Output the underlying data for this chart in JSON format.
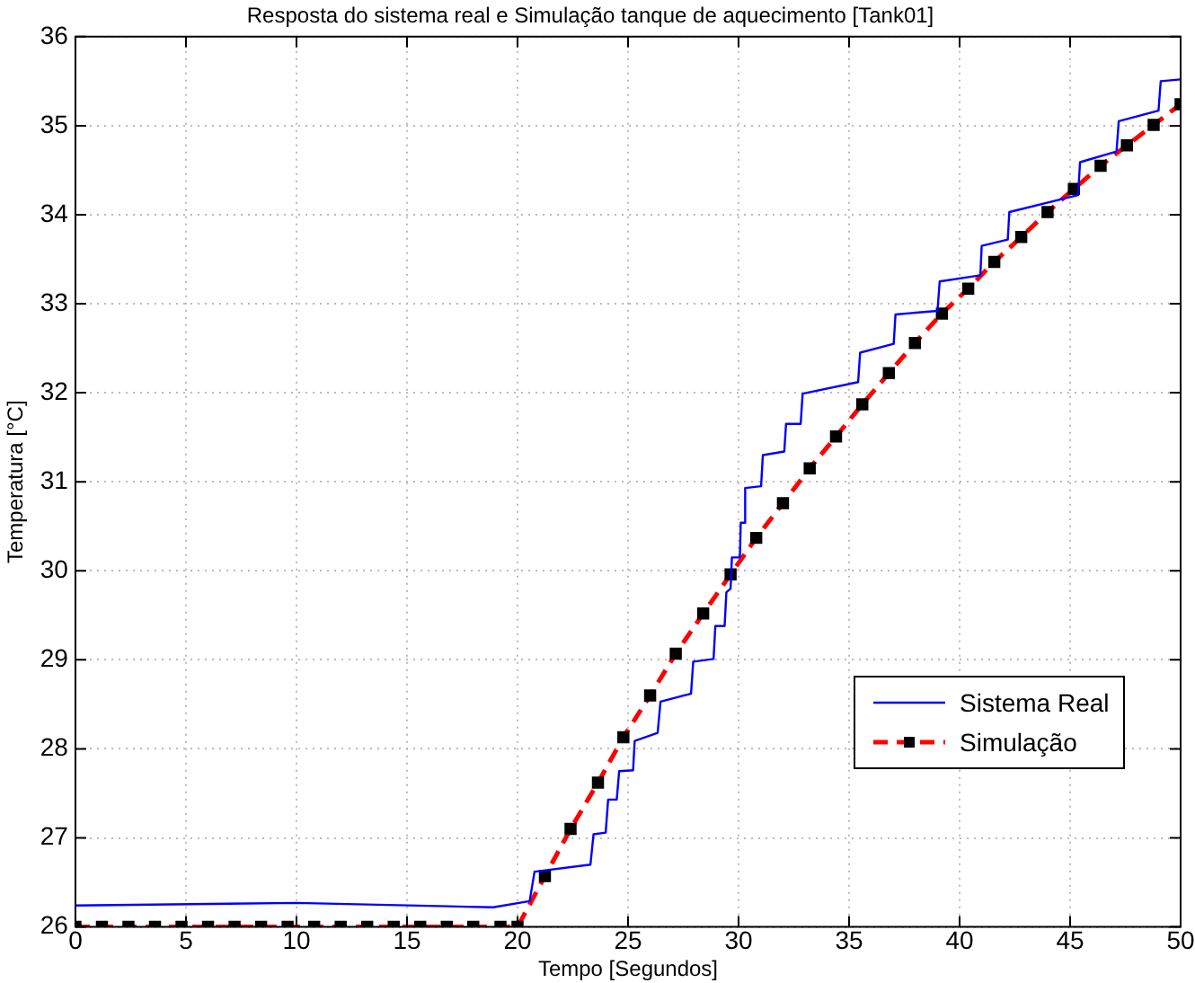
{
  "chart_data": {
    "type": "line",
    "title": "Resposta do sistema real e Simulação tanque de aquecimento [Tank01]",
    "xlabel": "Tempo [Segundos]",
    "ylabel": "Temperatura [°C]",
    "xlim": [
      0,
      50
    ],
    "ylim": [
      26,
      36
    ],
    "xticks": [
      0,
      5,
      10,
      15,
      20,
      25,
      30,
      35,
      40,
      45,
      50
    ],
    "yticks": [
      26,
      27,
      28,
      29,
      30,
      31,
      32,
      33,
      34,
      35,
      36
    ],
    "grid": true,
    "legend": "bottom right",
    "series": [
      {
        "name": "Sistema Real",
        "color": "#0000ff",
        "marker": "none",
        "line_style": "solid",
        "x": [
          0,
          10,
          18.9,
          20.55,
          20.77,
          23.3,
          23.44,
          23.99,
          24.1,
          24.49,
          24.6,
          25.23,
          25.3,
          26.34,
          26.47,
          27.85,
          27.95,
          28.87,
          28.95,
          29.37,
          29.45,
          29.64,
          29.7,
          30.06,
          30.1,
          30.25,
          30.3,
          31.02,
          31.1,
          32.07,
          32.15,
          32.81,
          32.9,
          35.41,
          35.5,
          37.02,
          37.1,
          39.0,
          39.1,
          40.94,
          41.0,
          42.18,
          42.25,
          45.36,
          45.45,
          47.1,
          47.2,
          49.0,
          49.1,
          50
        ],
        "values": [
          26.24,
          26.27,
          26.22,
          26.29,
          26.62,
          26.7,
          27.04,
          27.06,
          27.43,
          27.43,
          27.75,
          27.76,
          28.09,
          28.18,
          28.53,
          28.62,
          28.98,
          29.01,
          29.38,
          29.38,
          29.76,
          29.8,
          30.15,
          30.15,
          30.54,
          30.54,
          30.93,
          30.95,
          31.3,
          31.34,
          31.65,
          31.65,
          31.99,
          32.12,
          32.45,
          32.55,
          32.88,
          32.92,
          33.25,
          33.32,
          33.65,
          33.72,
          34.03,
          34.22,
          34.59,
          34.71,
          35.05,
          35.17,
          35.5,
          35.52
        ]
      },
      {
        "name": "Simulação",
        "color": "#ff0000",
        "marker": "square",
        "line_style": "dashed",
        "x": [
          0,
          1.2,
          2.4,
          3.6,
          4.8,
          6.0,
          7.2,
          8.4,
          9.6,
          10.8,
          12.0,
          13.2,
          14.4,
          15.6,
          16.8,
          18.0,
          19.23,
          20.0,
          21.24,
          22.4,
          23.64,
          24.79,
          26.0,
          27.16,
          28.4,
          29.64,
          30.8,
          32.01,
          33.22,
          34.41,
          35.6,
          36.8,
          37.98,
          39.2,
          40.39,
          41.57,
          42.79,
          43.98,
          45.17,
          46.38,
          47.57,
          48.78,
          50.0
        ],
        "values": [
          26,
          26,
          26,
          26,
          26,
          26,
          26,
          26,
          26,
          26,
          26,
          26,
          26,
          26,
          26,
          26,
          26,
          26,
          26.57,
          27.1,
          27.62,
          28.13,
          28.6,
          29.07,
          29.52,
          29.96,
          30.37,
          30.76,
          31.15,
          31.51,
          31.87,
          32.22,
          32.56,
          32.89,
          33.17,
          33.47,
          33.75,
          34.03,
          34.29,
          34.55,
          34.78,
          35.01,
          35.24
        ]
      }
    ]
  }
}
